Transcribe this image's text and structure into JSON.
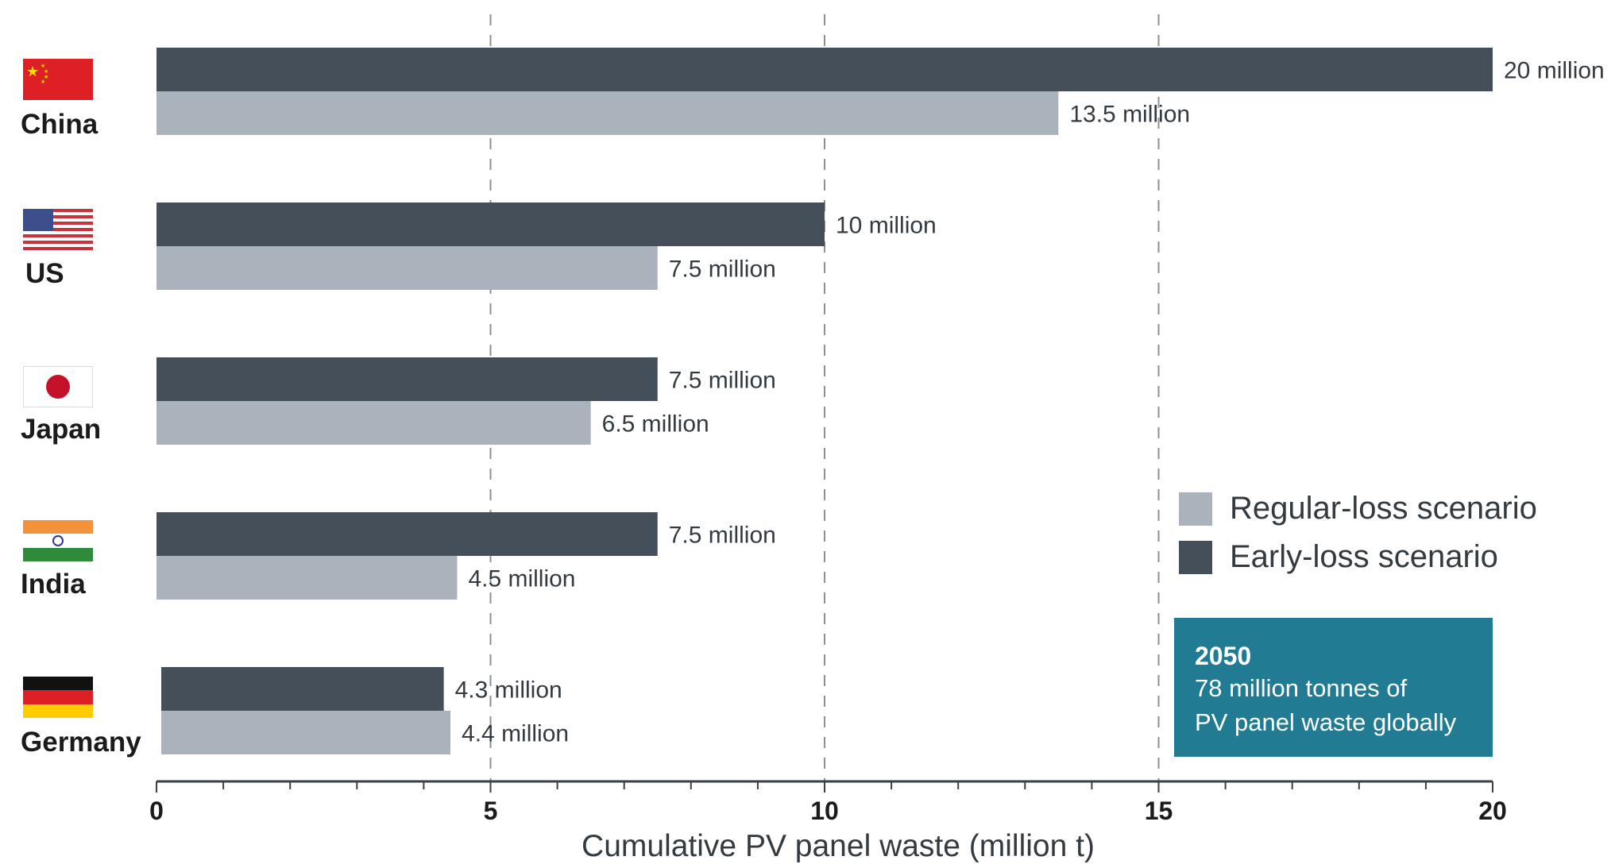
{
  "chart_data": {
    "type": "bar",
    "orientation": "horizontal",
    "title": "",
    "xlabel": "Cumulative PV panel waste (million t)",
    "ylabel": "",
    "xlim": [
      0,
      20
    ],
    "x_ticks": [
      0,
      5,
      10,
      15,
      20
    ],
    "grid": "vertical dashed at major ticks",
    "legend_position": "right",
    "categories": [
      "China",
      "US",
      "Japan",
      "India",
      "Germany"
    ],
    "series": [
      {
        "name": "Early-loss scenario",
        "color": "#454f59",
        "values": [
          20,
          10,
          7.5,
          7.5,
          4.3
        ],
        "labels": [
          "20 million",
          "10 million",
          "7.5 million",
          "7.5 million",
          "4.3 million"
        ]
      },
      {
        "name": "Regular-loss scenario",
        "color": "#aab2bc",
        "values": [
          13.5,
          7.5,
          6.5,
          4.5,
          4.4
        ],
        "labels": [
          "13.5 million",
          "7.5 million",
          "6.5 million",
          "4.5 million",
          "4.4 million"
        ]
      }
    ]
  },
  "flags": [
    "china-flag",
    "us-flag",
    "japan-flag",
    "india-flag",
    "germany-flag"
  ],
  "legend": {
    "regular": {
      "label": "Regular-loss scenario",
      "color": "#aab2bc"
    },
    "early": {
      "label": "Early-loss scenario",
      "color": "#454f59"
    }
  },
  "callout": {
    "year": "2050",
    "line1": "78 million tonnes of",
    "line2": "PV panel waste globally",
    "color": "#207b93"
  }
}
